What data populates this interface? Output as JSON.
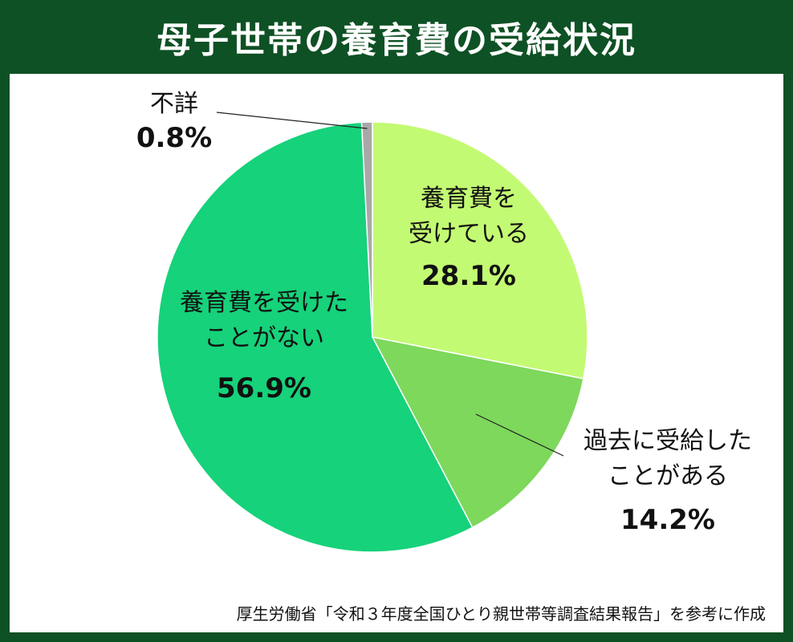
{
  "title": "母子世帯の養育費の受給状況",
  "source": "厚生労働省「令和３年度全国ひとり親世帯等調査結果報告」を参考に作成",
  "colors": {
    "background": "#0e5124",
    "panel": "#ffffff"
  },
  "chart_data": {
    "type": "pie",
    "title": "母子世帯の養育費の受給状況",
    "slices": [
      {
        "lines": [
          "養育費を",
          "受けている"
        ],
        "value": 28.1,
        "value_label": "28.1%",
        "color": "#c3fa73"
      },
      {
        "lines": [
          "過去に受給した",
          "ことがある"
        ],
        "value": 14.2,
        "value_label": "14.2%",
        "color": "#7dd85c"
      },
      {
        "lines": [
          "養育費を受けた",
          "ことがない"
        ],
        "value": 56.9,
        "value_label": "56.9%",
        "color": "#16d27a"
      },
      {
        "lines": [
          "不詳"
        ],
        "value": 0.8,
        "value_label": "0.8%",
        "color": "#a8a8a8"
      }
    ]
  }
}
